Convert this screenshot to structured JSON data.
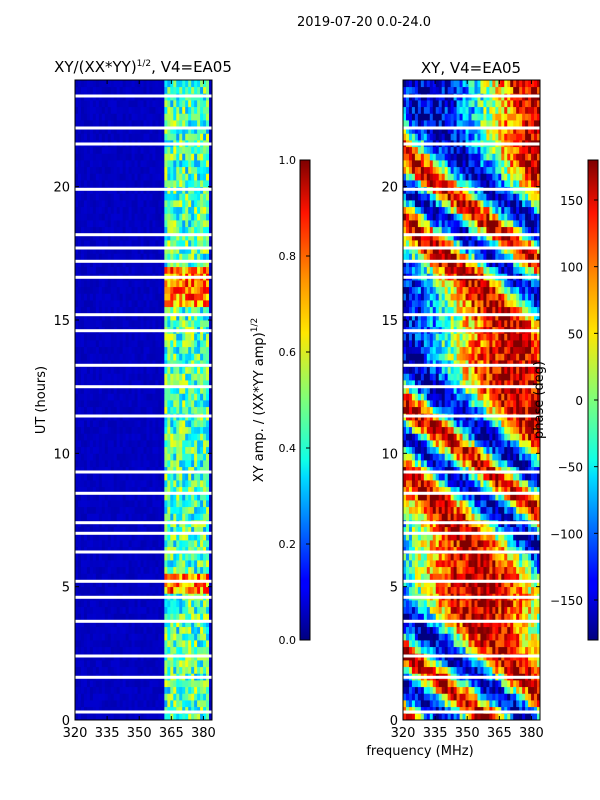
{
  "suptitle": "2019-07-20 0.0-24.0",
  "shared_xlabel": "frequency (MHz)",
  "chart_data": [
    {
      "type": "heatmap",
      "title": "XY/(XX*YY)",
      "title_sup": "1/2",
      "title_tail": ", V4=EA05",
      "xlabel": "",
      "ylabel": "UT (hours)",
      "xlim": [
        320,
        384
      ],
      "ylim": [
        0,
        24
      ],
      "xticks": [
        320,
        335,
        350,
        365,
        380
      ],
      "yticks": [
        0,
        5,
        10,
        15,
        20
      ],
      "colorbar": {
        "label": "XY amp. / (XX*YY amp)",
        "label_sup": "1/2",
        "range": [
          0.0,
          1.0
        ],
        "ticks": [
          "0.0",
          "0.2",
          "0.4",
          "0.6",
          "0.8",
          "1.0"
        ],
        "tick_values": [
          0.0,
          0.2,
          0.4,
          0.6,
          0.8,
          1.0
        ],
        "colormap": "jet"
      },
      "baseline_value": 0.05,
      "active_band_mhz": [
        362,
        382
      ],
      "active_band_value": 0.45,
      "gap_hours": [
        23.4,
        22.2,
        21.6,
        19.9,
        18.2,
        17.7,
        17.2,
        16.6,
        15.2,
        14.6,
        13.3,
        12.5,
        11.4,
        9.3,
        8.5,
        7.4,
        7.0,
        6.3,
        5.2,
        4.6,
        3.7,
        2.4,
        1.6,
        0.3
      ]
    },
    {
      "type": "heatmap",
      "title": "XY, V4=EA05",
      "xlabel": "",
      "ylabel": "",
      "xlim": [
        320,
        384
      ],
      "ylim": [
        0,
        24
      ],
      "xticks": [
        320,
        335,
        350,
        365,
        380
      ],
      "yticks": [
        0,
        5,
        10,
        15,
        20
      ],
      "colorbar": {
        "label": "phase (deg)",
        "range": [
          -180,
          180
        ],
        "ticks": [
          "−150",
          "−100",
          "−50",
          "0",
          "50",
          "100",
          "150"
        ],
        "tick_values": [
          -150,
          -100,
          -50,
          0,
          50,
          100,
          150
        ],
        "colormap": "jet"
      },
      "gap_hours": [
        23.4,
        22.2,
        21.6,
        19.9,
        18.2,
        17.7,
        17.2,
        16.6,
        15.2,
        14.6,
        13.3,
        12.5,
        11.4,
        9.3,
        8.5,
        7.4,
        7.0,
        6.3,
        5.2,
        4.6,
        3.7,
        2.4,
        1.6,
        0.3
      ]
    }
  ]
}
